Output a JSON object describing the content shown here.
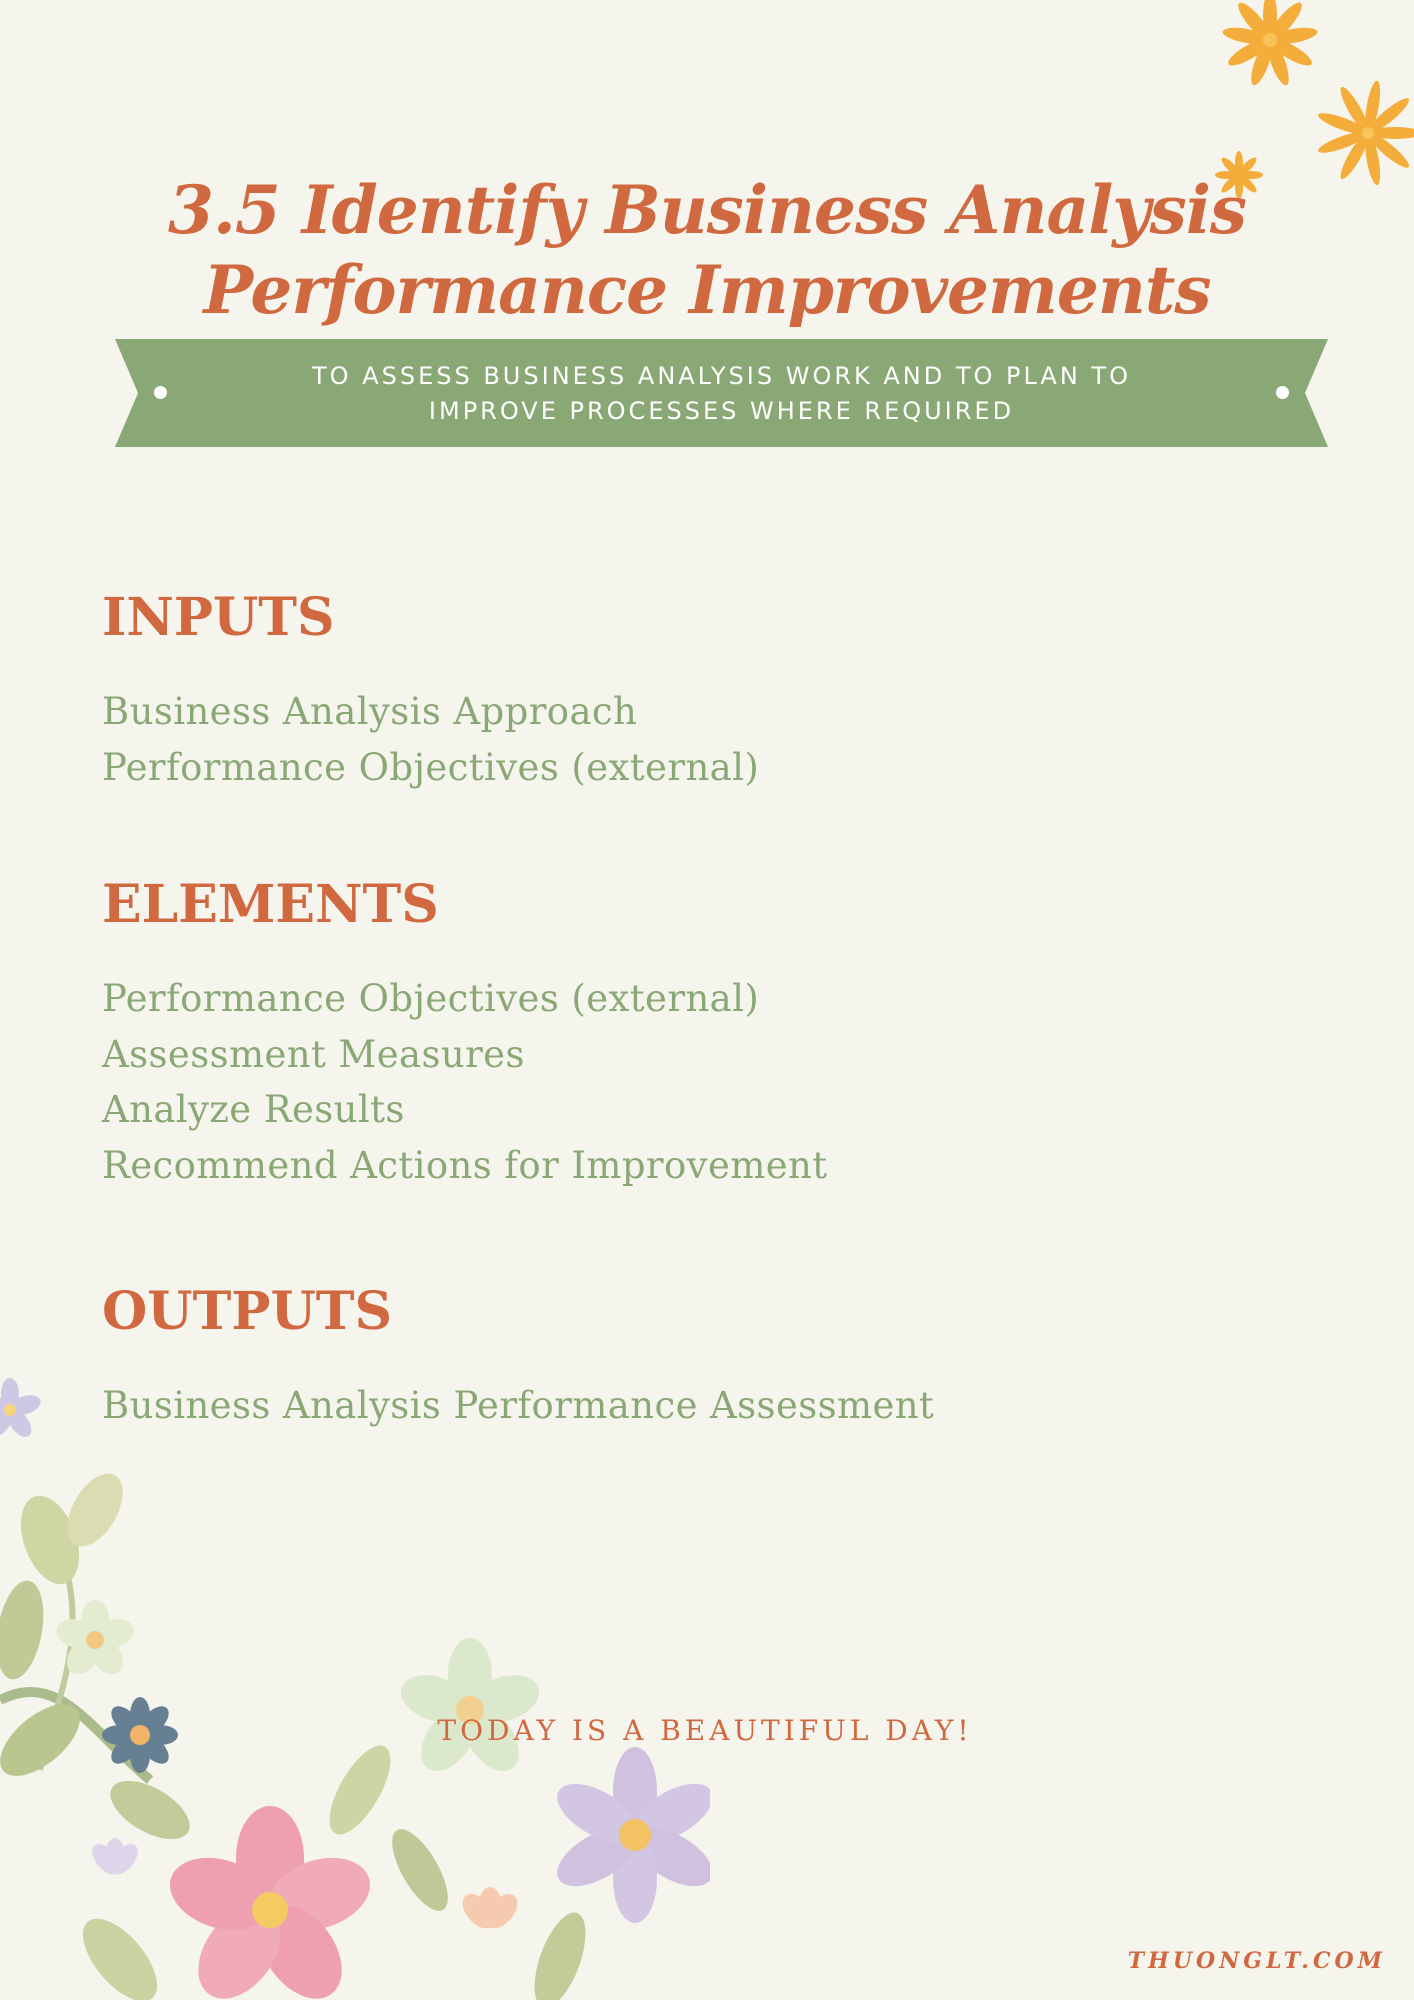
{
  "title": {
    "line1": "3.5 Identify Business Analysis",
    "line2": "Performance Improvements"
  },
  "banner": {
    "text": "To assess business analysis work and to plan to improve processes where required"
  },
  "sections": {
    "inputs": {
      "heading": "INPUTS",
      "items": [
        "Business Analysis Approach",
        "Performance Objectives (external)"
      ]
    },
    "elements": {
      "heading": "ELEMENTS",
      "items": [
        "Performance Objectives (external)",
        "Assessment Measures",
        "Analyze Results",
        "Recommend Actions for Improvement"
      ]
    },
    "outputs": {
      "heading": "OUTPUTS",
      "items": [
        "Business Analysis Performance Assessment"
      ]
    }
  },
  "footer": {
    "motto": "TODAY IS A BEAUTIFUL DAY!",
    "site": "THUONGLT.COM"
  },
  "colors": {
    "background": "#f5f5ee",
    "accent_orange": "#d0693f",
    "banner_green": "#8aa876",
    "text_green": "#8aa876",
    "flower_yellow": "#f4ad3a"
  },
  "icons": [
    "flower-icon",
    "floral-corner-illustration"
  ]
}
